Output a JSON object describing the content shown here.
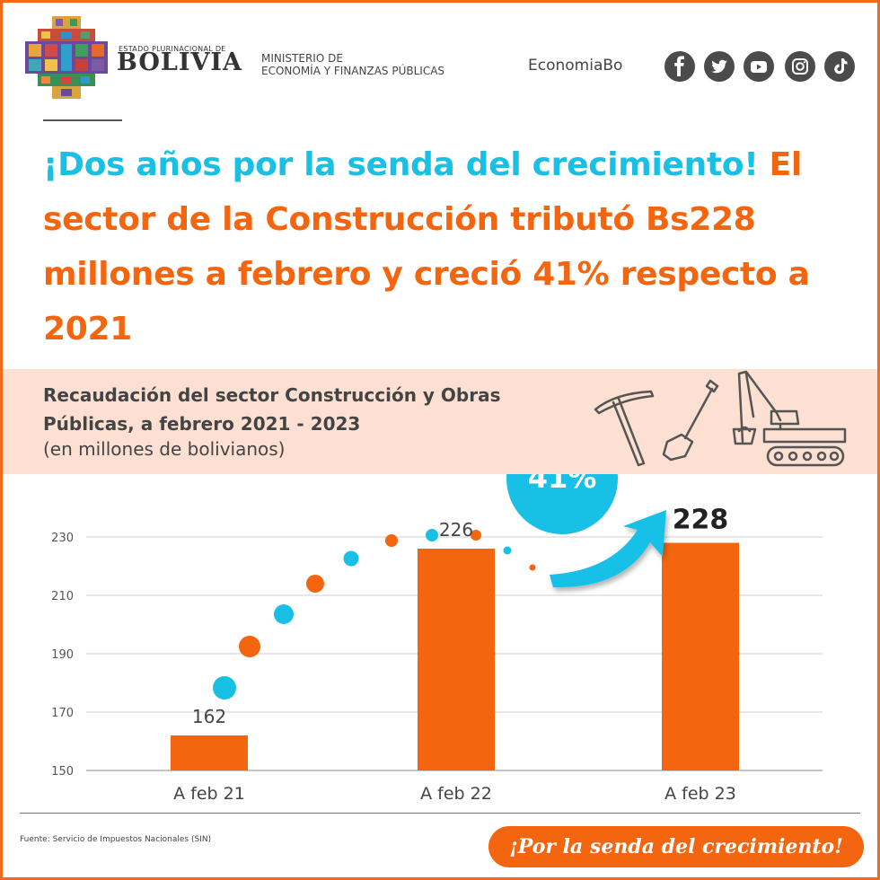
{
  "header": {
    "estado": "ESTADO PLURINACIONAL DE",
    "country": "BOLIVIA",
    "ministry_line1": "MINISTERIO DE",
    "ministry_line2": "ECONOMÍA Y FINANZAS PÚBLICAS",
    "handle": "EconomiaBo",
    "social_icons": [
      "facebook-icon",
      "twitter-icon",
      "youtube-icon",
      "instagram-icon",
      "tiktok-icon"
    ]
  },
  "headline": {
    "part_cyan": "¡Dos años por la senda del crecimiento!",
    "part_orange": "El sector de la Construcción tributó Bs228 millones a febrero y creció 41% respecto a 2021"
  },
  "colors": {
    "orange": "#f4650f",
    "cyan": "#19c0e6",
    "band": "#fde0d2"
  },
  "chart_data": {
    "type": "bar",
    "title": "Recaudación del sector Construcción y Obras Públicas, a febrero 2021 - 2023",
    "subtitle": "(en millones de bolivianos)",
    "categories": [
      "A feb 21",
      "A feb 22",
      "A feb 23"
    ],
    "values": [
      162,
      226,
      228
    ],
    "data_labels": [
      "162",
      "226",
      "228"
    ],
    "ylim": [
      150,
      236
    ],
    "yticks": [
      150,
      170,
      190,
      210,
      230
    ],
    "grid": true,
    "annotation": "41%",
    "bar_color": "#f4650f"
  },
  "footer": {
    "source": "Fuente: Servicio de Impuestos Nacionales (SIN)",
    "slogan": "¡Por la senda del crecimiento!"
  }
}
